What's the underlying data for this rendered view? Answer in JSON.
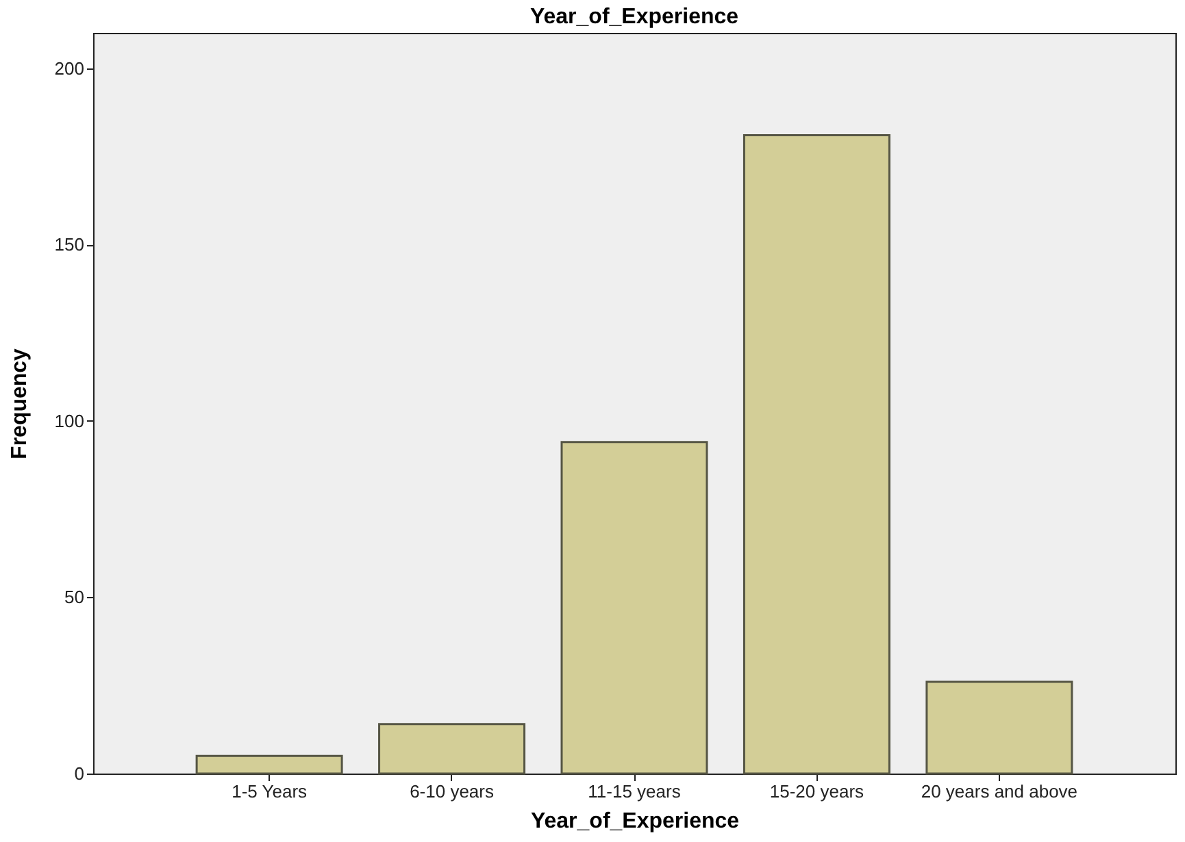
{
  "chart_data": {
    "type": "bar",
    "title": "Year_of_Experience",
    "xlabel": "Year_of_Experience",
    "ylabel": "Frequency",
    "categories": [
      "1-5 Years",
      "6-10 years",
      "11-15 years",
      "15-20 years",
      "20 years and above"
    ],
    "values": [
      5,
      14,
      94,
      181,
      26
    ],
    "color": "#d3ce97",
    "ylim": [
      0,
      210
    ],
    "yticks": [
      0,
      50,
      100,
      150,
      200
    ],
    "grid": false
  }
}
